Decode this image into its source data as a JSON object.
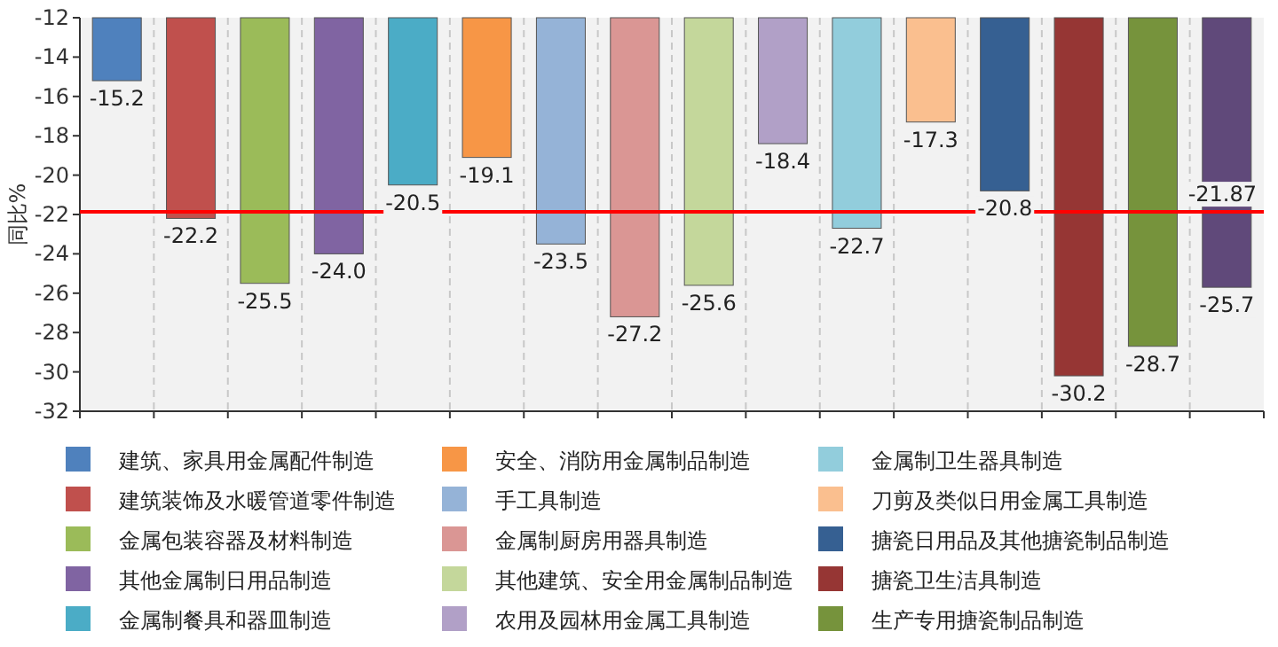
{
  "chart_data": {
    "type": "bar",
    "ylabel": "同比%",
    "categories": [
      null,
      null,
      null,
      null,
      null,
      null,
      null,
      null,
      null,
      null,
      null,
      null,
      null,
      null,
      null,
      null
    ],
    "ylim": [
      -32,
      -12
    ],
    "yticks": [
      -32,
      -30,
      -28,
      -26,
      -24,
      -22,
      -20,
      -18,
      -16,
      -14,
      -12
    ],
    "grid": "x",
    "legend": "bottom",
    "series": [
      {
        "name": "建筑、家具用金属配件制造",
        "color": "#4f81bd",
        "values": [
          -15.2,
          null,
          null,
          null,
          null,
          null,
          null,
          null,
          null,
          null,
          null,
          null,
          null,
          null,
          null,
          null
        ],
        "value_labels": [
          "-15.2",
          null,
          null,
          null,
          null,
          null,
          null,
          null,
          null,
          null,
          null,
          null,
          null,
          null,
          null,
          null
        ]
      },
      {
        "name": "建筑装饰及水暖管道零件制造",
        "color": "#c0504d",
        "values": [
          null,
          -22.2,
          null,
          null,
          null,
          null,
          null,
          null,
          null,
          null,
          null,
          null,
          null,
          null,
          null,
          null
        ],
        "value_labels": [
          null,
          "-22.2",
          null,
          null,
          null,
          null,
          null,
          null,
          null,
          null,
          null,
          null,
          null,
          null,
          null,
          null
        ]
      },
      {
        "name": "金属包装容器及材料制造",
        "color": "#9bbb59",
        "values": [
          null,
          null,
          -25.5,
          null,
          null,
          null,
          null,
          null,
          null,
          null,
          null,
          null,
          null,
          null,
          null,
          null
        ],
        "value_labels": [
          null,
          null,
          "-25.5",
          null,
          null,
          null,
          null,
          null,
          null,
          null,
          null,
          null,
          null,
          null,
          null,
          null
        ]
      },
      {
        "name": "其他金属制日用品制造",
        "color": "#8064a2",
        "values": [
          null,
          null,
          null,
          -24.0,
          null,
          null,
          null,
          null,
          null,
          null,
          null,
          null,
          null,
          null,
          null,
          null
        ],
        "value_labels": [
          null,
          null,
          null,
          "-24.0",
          null,
          null,
          null,
          null,
          null,
          null,
          null,
          null,
          null,
          null,
          null,
          null
        ]
      },
      {
        "name": "金属制餐具和器皿制造",
        "color": "#4bacc6",
        "values": [
          null,
          null,
          null,
          null,
          -20.5,
          null,
          null,
          null,
          null,
          null,
          null,
          null,
          null,
          null,
          null,
          null
        ],
        "value_labels": [
          null,
          null,
          null,
          null,
          "-20.5",
          null,
          null,
          null,
          null,
          null,
          null,
          null,
          null,
          null,
          null,
          null
        ]
      },
      {
        "name": "安全、消防用金属制品制造",
        "color": "#f79646",
        "values": [
          null,
          null,
          null,
          null,
          null,
          -19.1,
          null,
          null,
          null,
          null,
          null,
          null,
          null,
          null,
          null,
          null
        ],
        "value_labels": [
          null,
          null,
          null,
          null,
          null,
          "-19.1",
          null,
          null,
          null,
          null,
          null,
          null,
          null,
          null,
          null,
          null
        ]
      },
      {
        "name": "手工具制造",
        "color": "#95b3d7",
        "values": [
          null,
          null,
          null,
          null,
          null,
          null,
          -23.5,
          null,
          null,
          null,
          null,
          null,
          null,
          null,
          null,
          null
        ],
        "value_labels": [
          null,
          null,
          null,
          null,
          null,
          null,
          "-23.5",
          null,
          null,
          null,
          null,
          null,
          null,
          null,
          null,
          null
        ]
      },
      {
        "name": "金属制厨房用器具制造",
        "color": "#da9694",
        "values": [
          null,
          null,
          null,
          null,
          null,
          null,
          null,
          -27.2,
          null,
          null,
          null,
          null,
          null,
          null,
          null,
          null
        ],
        "value_labels": [
          null,
          null,
          null,
          null,
          null,
          null,
          null,
          "-27.2",
          null,
          null,
          null,
          null,
          null,
          null,
          null,
          null
        ]
      },
      {
        "name": "其他建筑、安全用金属制品制造",
        "color": "#c4d79b",
        "values": [
          null,
          null,
          null,
          null,
          null,
          null,
          null,
          null,
          -25.6,
          null,
          null,
          null,
          null,
          null,
          null,
          null
        ],
        "value_labels": [
          null,
          null,
          null,
          null,
          null,
          null,
          null,
          null,
          "-25.6",
          null,
          null,
          null,
          null,
          null,
          null,
          null
        ]
      },
      {
        "name": "农用及园林用金属工具制造",
        "color": "#b1a0c7",
        "values": [
          null,
          null,
          null,
          null,
          null,
          null,
          null,
          null,
          null,
          -18.4,
          null,
          null,
          null,
          null,
          null,
          null
        ],
        "value_labels": [
          null,
          null,
          null,
          null,
          null,
          null,
          null,
          null,
          null,
          "-18.4",
          null,
          null,
          null,
          null,
          null,
          null
        ]
      },
      {
        "name": "金属制卫生器具制造",
        "color": "#92cddc",
        "values": [
          null,
          null,
          null,
          null,
          null,
          null,
          null,
          null,
          null,
          null,
          -22.7,
          null,
          null,
          null,
          null,
          null
        ],
        "value_labels": [
          null,
          null,
          null,
          null,
          null,
          null,
          null,
          null,
          null,
          null,
          "-22.7",
          null,
          null,
          null,
          null,
          null
        ]
      },
      {
        "name": "刀剪及类似日用金属工具制造",
        "color": "#fabf8f",
        "values": [
          null,
          null,
          null,
          null,
          null,
          null,
          null,
          null,
          null,
          null,
          null,
          -17.3,
          null,
          null,
          null,
          null
        ],
        "value_labels": [
          null,
          null,
          null,
          null,
          null,
          null,
          null,
          null,
          null,
          null,
          null,
          "-17.3",
          null,
          null,
          null,
          null
        ]
      },
      {
        "name": "搪瓷日用品及其他搪瓷制品制造",
        "color": "#366092",
        "values": [
          null,
          null,
          null,
          null,
          null,
          null,
          null,
          null,
          null,
          null,
          null,
          null,
          -20.8,
          null,
          null,
          null
        ],
        "value_labels": [
          null,
          null,
          null,
          null,
          null,
          null,
          null,
          null,
          null,
          null,
          null,
          null,
          "-20.8",
          null,
          null,
          null
        ]
      },
      {
        "name": "搪瓷卫生洁具制造",
        "color": "#963634",
        "values": [
          null,
          null,
          null,
          null,
          null,
          null,
          null,
          null,
          null,
          null,
          null,
          null,
          null,
          -30.2,
          null,
          null
        ],
        "value_labels": [
          null,
          null,
          null,
          null,
          null,
          null,
          null,
          null,
          null,
          null,
          null,
          null,
          null,
          "-30.2",
          null,
          null
        ]
      },
      {
        "name": "生产专用搪瓷制品制造",
        "color": "#76933c",
        "values": [
          null,
          null,
          null,
          null,
          null,
          null,
          null,
          null,
          null,
          null,
          null,
          null,
          null,
          null,
          -28.7,
          null
        ],
        "value_labels": [
          null,
          null,
          null,
          null,
          null,
          null,
          null,
          null,
          null,
          null,
          null,
          null,
          null,
          null,
          "-28.7",
          null
        ]
      },
      {
        "color": "#60497a",
        "values": [
          null,
          null,
          null,
          null,
          null,
          null,
          null,
          null,
          null,
          null,
          null,
          null,
          null,
          null,
          null,
          -25.7
        ],
        "value_labels": [
          null,
          null,
          null,
          null,
          null,
          null,
          null,
          null,
          null,
          null,
          null,
          null,
          null,
          null,
          null,
          "-25.7"
        ]
      }
    ],
    "ref_lines": [
      {
        "axis": "y",
        "value": -21.87,
        "label": "-21.87",
        "color": "#ff0000"
      }
    ]
  }
}
